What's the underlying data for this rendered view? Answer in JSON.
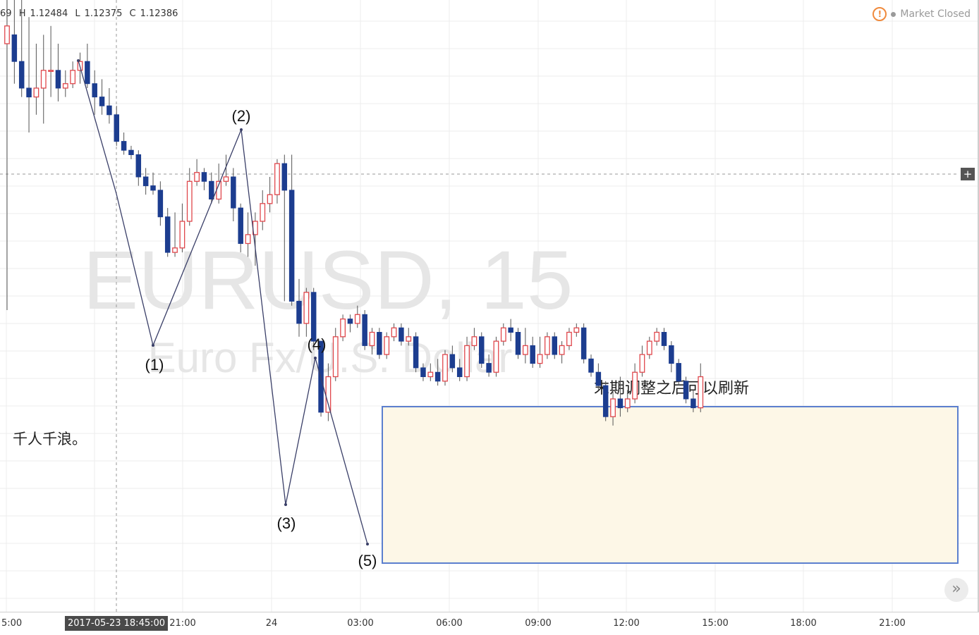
{
  "legend": {
    "open_fragment": "69",
    "high_label": "H",
    "high": "1.12484",
    "low_label": "L",
    "low": "1.12375",
    "close_label": "C",
    "close": "1.12386"
  },
  "status": {
    "warning_icon": "exclamation-circle-icon",
    "text": "Market Closed"
  },
  "watermark": {
    "symbol": "EURUSD, 15",
    "description": "Euro Fx/U.S. Dollar"
  },
  "annotations": {
    "wave_labels": [
      "(1)",
      "(2)",
      "(3)",
      "(4)",
      "(5)"
    ],
    "box_caption": "末期调整之后可以刷新",
    "side_note": "千人千浪。"
  },
  "xaxis": {
    "ticks": [
      "5:00",
      "21:00",
      "24",
      "03:00",
      "06:00",
      "09:00",
      "12:00",
      "15:00",
      "18:00",
      "21:00"
    ],
    "cursor_label": "2017-05-23 18:45:00"
  },
  "colors": {
    "bull": "#e0474c",
    "bear": "#1c3d8f",
    "box_fill": "#fdf7e7",
    "box_border": "#5b7fce",
    "wave_line": "#3a3f68",
    "grid": "#ececec",
    "watermark": "#e6e6e6"
  },
  "chart_data": {
    "type": "candlestick",
    "symbol": "EURUSD",
    "timeframe": "15",
    "last_bar": {
      "high": 1.12484,
      "low": 1.12375,
      "close": 1.12386
    },
    "candles_relative": [
      [
        60,
        64,
        0,
        92
      ],
      [
        62,
        56,
        51,
        92
      ],
      [
        56,
        50,
        48,
        92
      ],
      [
        50,
        48,
        40,
        66
      ],
      [
        48,
        50,
        44,
        60
      ],
      [
        50,
        54,
        42,
        62
      ],
      [
        54,
        54,
        48,
        64
      ],
      [
        54,
        50,
        47,
        60
      ],
      [
        50,
        51,
        48,
        54
      ],
      [
        51,
        54,
        50,
        56
      ],
      [
        54,
        56,
        51,
        58
      ],
      [
        56,
        51,
        50,
        60
      ],
      [
        51,
        48,
        44,
        54
      ],
      [
        48,
        46,
        44,
        52
      ],
      [
        46,
        44,
        42,
        50
      ],
      [
        44,
        38,
        37,
        46
      ],
      [
        38,
        36,
        35,
        40
      ],
      [
        36,
        35,
        34,
        37
      ],
      [
        35,
        30,
        28,
        36
      ],
      [
        30,
        28,
        26,
        32
      ],
      [
        28,
        27,
        26,
        31
      ],
      [
        27,
        21,
        19,
        29
      ],
      [
        21,
        13,
        12,
        23
      ],
      [
        13,
        14,
        12,
        22
      ],
      [
        14,
        20,
        13,
        24
      ],
      [
        20,
        29,
        19,
        32
      ],
      [
        29,
        31,
        28,
        34
      ],
      [
        31,
        29,
        27,
        32
      ],
      [
        29,
        25,
        24,
        31
      ],
      [
        25,
        29,
        24,
        33
      ],
      [
        29,
        30,
        28,
        35
      ],
      [
        30,
        23,
        20,
        32
      ],
      [
        23,
        15,
        13,
        24
      ],
      [
        15,
        17,
        12,
        22
      ],
      [
        17,
        20,
        10,
        22
      ],
      [
        20,
        24,
        18,
        27
      ],
      [
        24,
        26,
        22,
        30
      ],
      [
        26,
        33,
        24,
        34
      ],
      [
        33,
        27,
        2,
        35
      ],
      [
        27,
        2,
        1,
        35
      ],
      [
        2,
        -3,
        -6,
        7
      ],
      [
        -3,
        4,
        -6,
        5
      ],
      [
        4,
        -7,
        -9,
        5
      ],
      [
        -7,
        -23,
        -24,
        -8
      ],
      [
        -23,
        -15,
        -25,
        -12
      ],
      [
        -15,
        -6,
        -16,
        -4
      ],
      [
        -6,
        -2,
        -7,
        -1
      ],
      [
        -2,
        -3,
        -5,
        -1
      ],
      [
        -3,
        -1,
        -4,
        1
      ],
      [
        -1,
        -8,
        -9,
        0
      ],
      [
        -8,
        -5,
        -10,
        -4
      ],
      [
        -5,
        -10,
        -11,
        -4
      ],
      [
        -10,
        -6,
        -11,
        -5
      ],
      [
        -6,
        -4,
        -7,
        -3
      ],
      [
        -4,
        -7,
        -8,
        -3
      ],
      [
        -7,
        -6,
        -8,
        -4
      ],
      [
        -6,
        -13,
        -14,
        -5
      ],
      [
        -13,
        -15,
        -16,
        -12
      ],
      [
        -15,
        -14,
        -16,
        -12
      ],
      [
        -14,
        -16,
        -17,
        -11
      ],
      [
        -16,
        -10,
        -17,
        -9
      ],
      [
        -10,
        -13,
        -14,
        -8
      ],
      [
        -13,
        -15,
        -16,
        -11
      ],
      [
        -15,
        -8,
        -16,
        -6
      ],
      [
        -8,
        -6,
        -9,
        -4
      ],
      [
        -6,
        -12,
        -13,
        -5
      ],
      [
        -12,
        -14,
        -15,
        -10
      ],
      [
        -14,
        -7,
        -15,
        -6
      ],
      [
        -7,
        -4,
        -8,
        -3
      ],
      [
        -4,
        -5,
        -7,
        -2
      ],
      [
        -5,
        -10,
        -11,
        -4
      ],
      [
        -10,
        -8,
        -12,
        -4
      ],
      [
        -8,
        -12,
        -13,
        -6
      ],
      [
        -12,
        -10,
        -13,
        -6
      ],
      [
        -10,
        -6,
        -11,
        -5
      ],
      [
        -6,
        -10,
        -11,
        -5
      ],
      [
        -10,
        -8,
        -12,
        -7
      ],
      [
        -8,
        -5,
        -9,
        -4
      ],
      [
        -5,
        -4,
        -6,
        -3
      ],
      [
        -4,
        -11,
        -12,
        -3
      ],
      [
        -11,
        -14,
        -15,
        -10
      ],
      [
        -14,
        -17,
        -18,
        -12
      ],
      [
        -17,
        -24,
        -25,
        -16
      ],
      [
        -24,
        -20,
        -26,
        -18
      ],
      [
        -20,
        -22,
        -24,
        -15
      ],
      [
        -22,
        -20,
        -23,
        -18
      ],
      [
        -20,
        -14,
        -21,
        -12
      ],
      [
        -14,
        -10,
        -15,
        -8
      ],
      [
        -10,
        -7,
        -11,
        -6
      ],
      [
        -7,
        -5,
        -8,
        -4
      ],
      [
        -5,
        -8,
        -9,
        -4
      ],
      [
        -8,
        -12,
        -14,
        -7
      ],
      [
        -12,
        -16,
        -17,
        -11
      ],
      [
        -16,
        -20,
        -21,
        -15
      ],
      [
        -20,
        -22,
        -23,
        -18
      ],
      [
        -22,
        -15,
        -23,
        -12
      ]
    ],
    "waves": [
      "(1)",
      "(2)",
      "(3)",
      "(4)",
      "(5)"
    ]
  }
}
